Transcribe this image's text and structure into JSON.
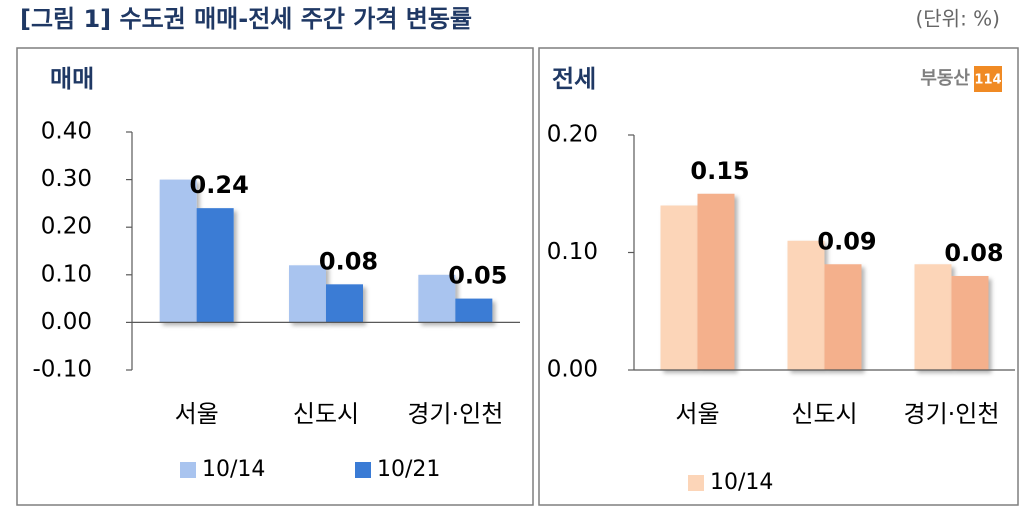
{
  "header": {
    "title": "[그림 1] 수도권 매매-전세 주간 가격 변동률",
    "unit": "(단위: %)"
  },
  "logo": {
    "text": "부동산",
    "badge": "114"
  },
  "chart_data": [
    {
      "type": "bar",
      "title": "매매",
      "categories": [
        "서울",
        "신도시",
        "경기·인천"
      ],
      "series": [
        {
          "name": "10/14",
          "color": "#a9c4ef",
          "values": [
            0.3,
            0.12,
            0.1
          ]
        },
        {
          "name": "10/21",
          "color": "#3a7bd5",
          "values": [
            0.24,
            0.08,
            0.05
          ],
          "show_labels": true
        }
      ],
      "ylim": [
        -0.1,
        0.4
      ],
      "yticks": [
        {
          "value": -0.1,
          "label": "-0.10"
        },
        {
          "value": 0,
          "label": "0.00"
        },
        {
          "value": 0.1,
          "label": "0.10"
        },
        {
          "value": 0.2,
          "label": "0.20"
        },
        {
          "value": 0.3,
          "label": "0.30"
        },
        {
          "value": 0.4,
          "label": "0.40"
        }
      ]
    },
    {
      "type": "bar",
      "title": "전세",
      "categories": [
        "서울",
        "신도시",
        "경기·인천"
      ],
      "series": [
        {
          "name": "10/14",
          "color": "#fcd5b8",
          "values": [
            0.14,
            0.11,
            0.09
          ]
        },
        {
          "color": "#f4b08c",
          "values": [
            0.15,
            0.09,
            0.08
          ],
          "show_labels": true
        }
      ],
      "ylim": [
        0,
        0.2
      ],
      "yticks": [
        {
          "value": 0,
          "label": "0.00"
        },
        {
          "value": 0.1,
          "label": "0.10"
        },
        {
          "value": 0.2,
          "label": "0.20"
        }
      ]
    }
  ]
}
